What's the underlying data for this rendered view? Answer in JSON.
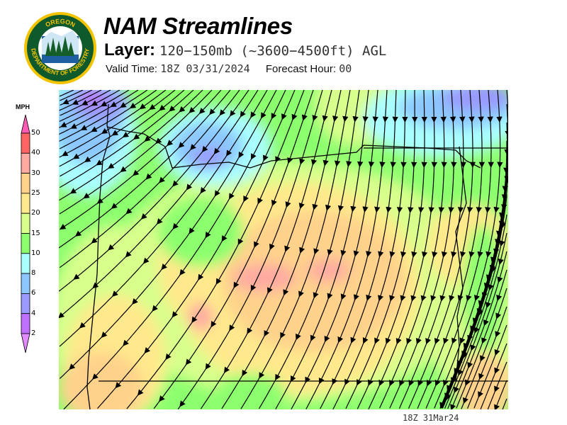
{
  "logo": {
    "text_top": "OREGON",
    "text_bottom": "DEPARTMENT OF FORESTRY"
  },
  "header": {
    "title": "NAM Streamlines",
    "layer_label": "Layer:",
    "layer_value": "120−150mb (~3600−4500ft) AGL",
    "valid_label": "Valid Time:",
    "valid_value": "18Z 03/31/2024",
    "forecast_label": "Forecast Hour:",
    "forecast_value": "00"
  },
  "colorbar": {
    "unit": "MPH",
    "bins": [
      {
        "label": "50",
        "color": "#ff6464"
      },
      {
        "label": "40",
        "color": "#ffaaa0"
      },
      {
        "label": "30",
        "color": "#ffd28c"
      },
      {
        "label": "25",
        "color": "#ffe98c"
      },
      {
        "label": "20",
        "color": "#d8ff8c"
      },
      {
        "label": "15",
        "color": "#8cff6e"
      },
      {
        "label": "10",
        "color": "#aaffff"
      },
      {
        "label": "8",
        "color": "#8cc8ff"
      },
      {
        "label": "6",
        "color": "#9a9aff"
      },
      {
        "label": "4",
        "color": "#c070ff"
      },
      {
        "label": "2",
        "color": ""
      }
    ],
    "over_color": "#ff5ab4",
    "under_color": "#e08cff"
  },
  "footer": {
    "timestamp": "18Z 31Mar24"
  }
}
